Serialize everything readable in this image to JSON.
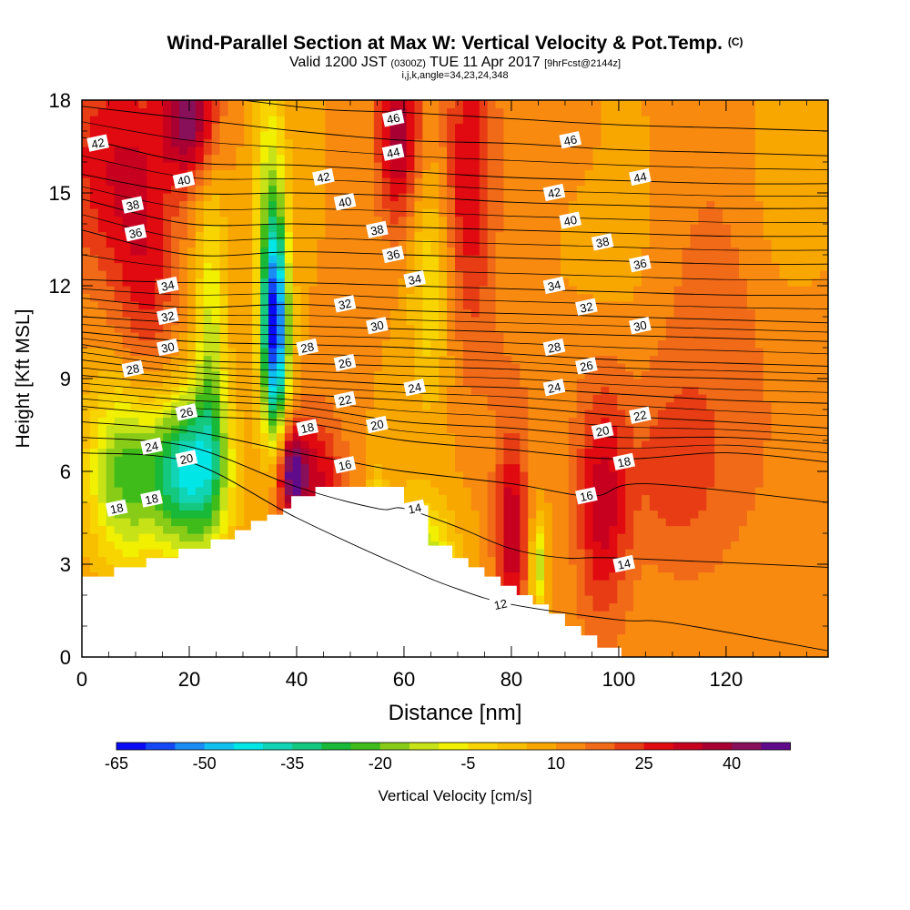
{
  "header": {
    "title_main": "Wind-Parallel Section at Max W: Vertical Velocity & Pot.Temp.",
    "title_unit": "(C)",
    "valid_pre": "Valid 1200 JST",
    "valid_z": "(0300Z)",
    "valid_date": "TUE 11 Apr 2017",
    "valid_fcst": "[9hrFcst@2144z]",
    "params": "i,j,k,angle=34,23,24,348"
  },
  "colorbar": {
    "label": "Vertical Velocity [cm/s]",
    "tick_labels": [
      "-65",
      "-50",
      "-35",
      "-20",
      "-5",
      "10",
      "25",
      "40"
    ],
    "tick_values": [
      -65,
      -50,
      -35,
      -20,
      -5,
      10,
      25,
      40
    ],
    "bins_start": -65,
    "bin_width": 5,
    "colors": [
      "#0a0af5",
      "#1448f5",
      "#1a8cf5",
      "#10c0f0",
      "#00e6e6",
      "#10d4b4",
      "#14c880",
      "#18b838",
      "#40bc1a",
      "#88cc18",
      "#c8e218",
      "#f0f000",
      "#f8d400",
      "#f8be00",
      "#f8a600",
      "#f88a10",
      "#f06a18",
      "#e83c14",
      "#e00a10",
      "#c80020",
      "#a80032",
      "#88105a",
      "#600a8c"
    ]
  },
  "chart_data": {
    "type": "heatmap",
    "title": "Wind-Parallel Section at Max W: Vertical Velocity & Pot.Temp. (C)",
    "xlabel": "Distance [nm]",
    "ylabel": "Height [Kft MSL]",
    "xlim": [
      0,
      139
    ],
    "ylim": [
      0,
      18
    ],
    "x_ticks": [
      0,
      20,
      40,
      60,
      80,
      100,
      120
    ],
    "y_ticks": [
      0,
      3,
      6,
      9,
      12,
      15,
      18
    ],
    "fill_variable": "Vertical Velocity [cm/s]",
    "fill_range": [
      -65,
      45
    ],
    "background_w": 10,
    "vertical_velocity_cells": [
      {
        "x": 5,
        "y": 16,
        "sx": 10,
        "sy": 4,
        "w": 28
      },
      {
        "x": 20,
        "y": 17.5,
        "sx": 5,
        "sy": 2,
        "w": 42
      },
      {
        "x": 12,
        "y": 12,
        "sx": 6,
        "sy": 5,
        "w": 24
      },
      {
        "x": 8,
        "y": 6,
        "sx": 7,
        "sy": 3,
        "w": -22
      },
      {
        "x": 20,
        "y": 6,
        "sx": 7,
        "sy": 2.5,
        "w": -40
      },
      {
        "x": 24,
        "y": 10,
        "sx": 3,
        "sy": 5,
        "w": -12
      },
      {
        "x": 36,
        "y": 10.5,
        "sx": 2.5,
        "sy": 3.5,
        "w": -60
      },
      {
        "x": 35,
        "y": 15,
        "sx": 3,
        "sy": 4,
        "w": -10
      },
      {
        "x": 39,
        "y": 6,
        "sx": 3,
        "sy": 1.5,
        "w": 45
      },
      {
        "x": 44,
        "y": 5.5,
        "sx": 5,
        "sy": 2.5,
        "w": 30
      },
      {
        "x": 59,
        "y": 17,
        "sx": 4,
        "sy": 3,
        "w": 38
      },
      {
        "x": 72,
        "y": 15.5,
        "sx": 5,
        "sy": 5,
        "w": 30
      },
      {
        "x": 65,
        "y": 12,
        "sx": 4,
        "sy": 4,
        "w": -5
      },
      {
        "x": 63,
        "y": 3,
        "sx": 6,
        "sy": 2,
        "w": -18
      },
      {
        "x": 55,
        "y": 4,
        "sx": 2,
        "sy": 2,
        "w": -8
      },
      {
        "x": 80,
        "y": 4,
        "sx": 3,
        "sy": 3,
        "w": 35
      },
      {
        "x": 85,
        "y": 3,
        "sx": 1.5,
        "sy": 1.5,
        "w": -15
      },
      {
        "x": 97,
        "y": 5,
        "sx": 5,
        "sy": 4,
        "w": 32
      },
      {
        "x": 120,
        "y": 10,
        "sx": 15,
        "sy": 8,
        "w": 18
      },
      {
        "x": 110,
        "y": 6,
        "sx": 8,
        "sy": 3,
        "w": 20
      },
      {
        "x": 80,
        "y": 9,
        "sx": 10,
        "sy": 3,
        "w": 14
      },
      {
        "x": 100,
        "y": 14,
        "sx": 8,
        "sy": 4,
        "w": 6
      },
      {
        "x": 88,
        "y": 17,
        "sx": 8,
        "sy": 2,
        "w": 15
      },
      {
        "x": 130,
        "y": 15,
        "sx": 8,
        "sy": 5,
        "w": 4
      }
    ],
    "terrain_height_kft": [
      2.6,
      2.6,
      2.6,
      2.6,
      2.9,
      2.9,
      2.9,
      2.9,
      3.2,
      3.2,
      3.2,
      3.2,
      3.5,
      3.5,
      3.5,
      3.5,
      3.8,
      3.8,
      3.8,
      4.1,
      4.1,
      4.4,
      4.4,
      4.6,
      4.6,
      4.8,
      5.2,
      5.2,
      5.2,
      5.5,
      5.5,
      5.5,
      5.5,
      5.5,
      5.5,
      5.5,
      5.5,
      5.5,
      5.5,
      5.5,
      4.9,
      4.9,
      4.9,
      3.6,
      3.6,
      3.6,
      3.2,
      3.2,
      2.9,
      2.9,
      2.6,
      2.6,
      2.3,
      2.3,
      2.0,
      2.0,
      1.7,
      1.7,
      1.4,
      1.4,
      1.0,
      1.0,
      0.7,
      0.7,
      0.3,
      0.3,
      0.3
    ],
    "terrain_x_step_nm": 1.5,
    "theta_contours": [
      {
        "label": "12",
        "points": [
          [
            0,
            6.6
          ],
          [
            20,
            6.3
          ],
          [
            40,
            4.5
          ],
          [
            60,
            2.9
          ],
          [
            70,
            2.2
          ],
          [
            80,
            1.7
          ],
          [
            100,
            1.2
          ],
          [
            110,
            1.1
          ],
          [
            139,
            0.2
          ]
        ]
      },
      {
        "label": "14",
        "points": [
          [
            0,
            7.1
          ],
          [
            20,
            6.8
          ],
          [
            40,
            5.5
          ],
          [
            55,
            4.8
          ],
          [
            60,
            4.8
          ],
          [
            70,
            4.2
          ],
          [
            80,
            3.5
          ],
          [
            90,
            3.2
          ],
          [
            100,
            3.2
          ],
          [
            139,
            2.9
          ]
        ]
      },
      {
        "label": "16",
        "points": [
          [
            0,
            7.6
          ],
          [
            20,
            7.3
          ],
          [
            40,
            6.6
          ],
          [
            50,
            6.3
          ],
          [
            60,
            6.0
          ],
          [
            80,
            5.6
          ],
          [
            95,
            5.2
          ],
          [
            105,
            5.6
          ],
          [
            139,
            5.0
          ]
        ]
      },
      {
        "label": "18",
        "points": [
          [
            0,
            8.1
          ],
          [
            20,
            7.8
          ],
          [
            40,
            7.6
          ],
          [
            60,
            7.0
          ],
          [
            80,
            6.7
          ],
          [
            100,
            6.4
          ],
          [
            120,
            6.6
          ],
          [
            139,
            6.3
          ]
        ]
      },
      {
        "label": "20",
        "points": [
          [
            0,
            8.6
          ],
          [
            20,
            8.3
          ],
          [
            40,
            8.1
          ],
          [
            60,
            7.6
          ],
          [
            80,
            7.4
          ],
          [
            100,
            7.1
          ],
          [
            120,
            7.1
          ],
          [
            139,
            6.9
          ]
        ]
      },
      {
        "label": "22",
        "points": [
          [
            0,
            9.1
          ],
          [
            20,
            8.8
          ],
          [
            40,
            8.5
          ],
          [
            60,
            8.3
          ],
          [
            80,
            8.1
          ],
          [
            100,
            7.8
          ],
          [
            120,
            7.6
          ],
          [
            139,
            7.4
          ]
        ]
      },
      {
        "label": "24",
        "points": [
          [
            0,
            9.6
          ],
          [
            20,
            9.2
          ],
          [
            40,
            9.0
          ],
          [
            60,
            8.8
          ],
          [
            80,
            8.7
          ],
          [
            100,
            8.5
          ],
          [
            120,
            8.3
          ],
          [
            139,
            8.2
          ]
        ]
      },
      {
        "label": "26",
        "points": [
          [
            0,
            10.1
          ],
          [
            20,
            9.6
          ],
          [
            40,
            9.5
          ],
          [
            60,
            9.4
          ],
          [
            80,
            9.3
          ],
          [
            100,
            9.1
          ],
          [
            120,
            9.0
          ],
          [
            139,
            8.9
          ]
        ]
      },
      {
        "label": "28",
        "points": [
          [
            0,
            10.5
          ],
          [
            20,
            10.2
          ],
          [
            40,
            10.1
          ],
          [
            60,
            10.0
          ],
          [
            80,
            9.8
          ],
          [
            100,
            9.6
          ],
          [
            120,
            9.5
          ],
          [
            139,
            9.4
          ]
        ]
      },
      {
        "label": "30",
        "points": [
          [
            0,
            11.0
          ],
          [
            20,
            10.8
          ],
          [
            40,
            10.7
          ],
          [
            60,
            10.6
          ],
          [
            80,
            10.5
          ],
          [
            100,
            10.4
          ],
          [
            120,
            10.3
          ],
          [
            139,
            10.2
          ]
        ]
      },
      {
        "label": "32",
        "points": [
          [
            0,
            11.6
          ],
          [
            20,
            11.3
          ],
          [
            40,
            11.4
          ],
          [
            60,
            11.2
          ],
          [
            80,
            11.1
          ],
          [
            100,
            11.0
          ],
          [
            120,
            10.9
          ],
          [
            139,
            10.8
          ]
        ]
      },
      {
        "label": "34",
        "points": [
          [
            0,
            12.2
          ],
          [
            20,
            12.1
          ],
          [
            40,
            12.1
          ],
          [
            60,
            12.0
          ],
          [
            80,
            11.9
          ],
          [
            100,
            11.8
          ],
          [
            120,
            11.7
          ],
          [
            139,
            11.7
          ]
        ]
      },
      {
        "label": "36",
        "points": [
          [
            0,
            13.8
          ],
          [
            20,
            13.0
          ],
          [
            40,
            13.1
          ],
          [
            60,
            13.0
          ],
          [
            80,
            12.9
          ],
          [
            100,
            12.8
          ],
          [
            120,
            12.7
          ],
          [
            139,
            12.7
          ]
        ]
      },
      {
        "label": "38",
        "points": [
          [
            0,
            14.8
          ],
          [
            20,
            14.0
          ],
          [
            40,
            14.0
          ],
          [
            60,
            13.9
          ],
          [
            80,
            13.8
          ],
          [
            100,
            13.7
          ],
          [
            120,
            13.6
          ],
          [
            139,
            13.6
          ]
        ]
      },
      {
        "label": "40",
        "points": [
          [
            0,
            15.6
          ],
          [
            20,
            15.0
          ],
          [
            40,
            15.0
          ],
          [
            60,
            14.9
          ],
          [
            80,
            14.7
          ],
          [
            100,
            14.6
          ],
          [
            120,
            14.5
          ],
          [
            139,
            14.5
          ]
        ]
      },
      {
        "label": "42",
        "points": [
          [
            0,
            16.8
          ],
          [
            20,
            16.0
          ],
          [
            40,
            15.9
          ],
          [
            60,
            15.7
          ],
          [
            80,
            15.5
          ],
          [
            100,
            15.4
          ],
          [
            120,
            15.3
          ],
          [
            139,
            15.3
          ]
        ]
      },
      {
        "label": "44",
        "points": [
          [
            0,
            17.8
          ],
          [
            20,
            17.4
          ],
          [
            40,
            17.0
          ],
          [
            60,
            16.7
          ],
          [
            80,
            16.6
          ],
          [
            100,
            16.4
          ],
          [
            120,
            16.3
          ],
          [
            139,
            16.2
          ]
        ]
      },
      {
        "label": "46",
        "points": [
          [
            30,
            18.0
          ],
          [
            45,
            17.7
          ],
          [
            60,
            17.6
          ],
          [
            80,
            17.4
          ],
          [
            100,
            17.2
          ],
          [
            120,
            17.1
          ],
          [
            139,
            17.0
          ]
        ]
      }
    ],
    "theta_labels": [
      {
        "text": "42",
        "x": 3,
        "y": 16.6
      },
      {
        "text": "40",
        "x": 19,
        "y": 15.4
      },
      {
        "text": "38",
        "x": 9.5,
        "y": 14.6
      },
      {
        "text": "36",
        "x": 10,
        "y": 13.7
      },
      {
        "text": "34",
        "x": 16,
        "y": 12.0
      },
      {
        "text": "32",
        "x": 16,
        "y": 11.0
      },
      {
        "text": "30",
        "x": 16,
        "y": 10.0
      },
      {
        "text": "28",
        "x": 9.5,
        "y": 9.3
      },
      {
        "text": "26",
        "x": 19.5,
        "y": 7.9
      },
      {
        "text": "24",
        "x": 13,
        "y": 6.8
      },
      {
        "text": "20",
        "x": 19.5,
        "y": 6.4
      },
      {
        "text": "18",
        "x": 6.5,
        "y": 4.8
      },
      {
        "text": "18",
        "x": 13,
        "y": 5.1
      },
      {
        "text": "46",
        "x": 58,
        "y": 17.4
      },
      {
        "text": "44",
        "x": 58,
        "y": 16.3
      },
      {
        "text": "42",
        "x": 45,
        "y": 15.5
      },
      {
        "text": "40",
        "x": 49,
        "y": 14.7
      },
      {
        "text": "38",
        "x": 55,
        "y": 13.8
      },
      {
        "text": "36",
        "x": 58,
        "y": 13.0
      },
      {
        "text": "34",
        "x": 62,
        "y": 12.2
      },
      {
        "text": "32",
        "x": 49,
        "y": 11.4
      },
      {
        "text": "30",
        "x": 55,
        "y": 10.7
      },
      {
        "text": "28",
        "x": 42,
        "y": 10.0
      },
      {
        "text": "26",
        "x": 49,
        "y": 9.5
      },
      {
        "text": "24",
        "x": 62,
        "y": 8.7
      },
      {
        "text": "22",
        "x": 49,
        "y": 8.3
      },
      {
        "text": "20",
        "x": 55,
        "y": 7.5
      },
      {
        "text": "18",
        "x": 42,
        "y": 7.4
      },
      {
        "text": "16",
        "x": 49,
        "y": 6.2
      },
      {
        "text": "14",
        "x": 62,
        "y": 4.8
      },
      {
        "text": "12",
        "x": 78,
        "y": 1.7
      },
      {
        "text": "46",
        "x": 91,
        "y": 16.7
      },
      {
        "text": "44",
        "x": 104,
        "y": 15.5
      },
      {
        "text": "42",
        "x": 88,
        "y": 15.0
      },
      {
        "text": "40",
        "x": 91,
        "y": 14.1
      },
      {
        "text": "38",
        "x": 97,
        "y": 13.4
      },
      {
        "text": "36",
        "x": 104,
        "y": 12.7
      },
      {
        "text": "34",
        "x": 88,
        "y": 12.0
      },
      {
        "text": "32",
        "x": 94,
        "y": 11.3
      },
      {
        "text": "30",
        "x": 104,
        "y": 10.7
      },
      {
        "text": "28",
        "x": 88,
        "y": 10.0
      },
      {
        "text": "26",
        "x": 94,
        "y": 9.4
      },
      {
        "text": "24",
        "x": 88,
        "y": 8.7
      },
      {
        "text": "22",
        "x": 104,
        "y": 7.8
      },
      {
        "text": "20",
        "x": 97,
        "y": 7.3
      },
      {
        "text": "18",
        "x": 101,
        "y": 6.3
      },
      {
        "text": "16",
        "x": 94,
        "y": 5.2
      },
      {
        "text": "14",
        "x": 101,
        "y": 3.0
      }
    ]
  }
}
